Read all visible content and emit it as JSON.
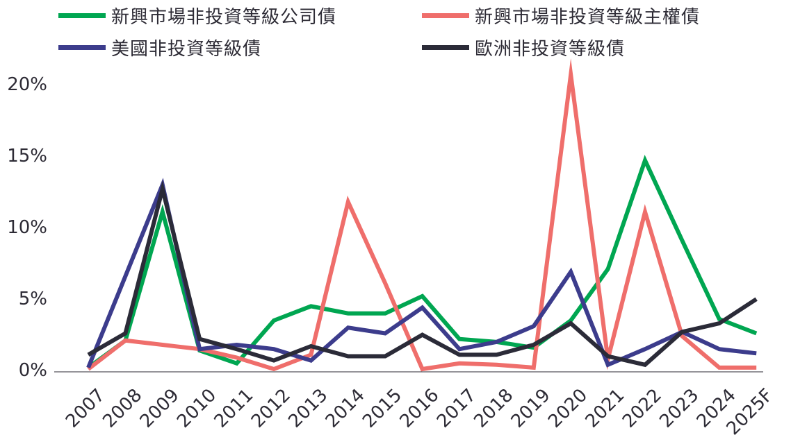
{
  "chart_data": {
    "type": "line",
    "categories": [
      "2007",
      "2008",
      "2009",
      "2010",
      "2011",
      "2012",
      "2013",
      "2014",
      "2015",
      "2016",
      "2017",
      "2018",
      "2019",
      "2020",
      "2021",
      "2022",
      "2023",
      "2024",
      "2025F"
    ],
    "series": [
      {
        "name": "新興市場非投資等級公司債",
        "color": "#00a651",
        "values": [
          0.1,
          2.0,
          11.0,
          1.3,
          0.4,
          3.4,
          4.4,
          3.9,
          3.9,
          5.1,
          2.1,
          1.9,
          1.5,
          3.4,
          7.0,
          14.6,
          9.0,
          3.5,
          2.5
        ]
      },
      {
        "name": "新興市場非投資等級主權債",
        "color": "#ef6e6b",
        "values": [
          0.0,
          2.0,
          1.7,
          1.4,
          0.8,
          0.0,
          1.0,
          11.7,
          6.0,
          0.0,
          0.4,
          0.3,
          0.1,
          20.6,
          0.7,
          11.0,
          2.3,
          0.1,
          0.1
        ]
      },
      {
        "name": "美國非投資等級債",
        "color": "#3c3c8c",
        "values": [
          0.1,
          6.5,
          12.9,
          1.4,
          1.7,
          1.4,
          0.6,
          2.9,
          2.5,
          4.3,
          1.4,
          1.9,
          3.0,
          6.8,
          0.3,
          1.4,
          2.6,
          1.4,
          1.1
        ]
      },
      {
        "name": "歐洲非投資等級債",
        "color": "#2b2b38",
        "values": [
          1.0,
          2.5,
          12.6,
          2.1,
          1.4,
          0.6,
          1.6,
          0.9,
          0.9,
          2.4,
          1.0,
          1.0,
          1.7,
          3.2,
          0.9,
          0.3,
          2.6,
          3.2,
          4.9
        ]
      }
    ],
    "y_ticks": [
      "0%",
      "5%",
      "10%",
      "15%",
      "20%"
    ],
    "ylim": [
      0,
      20.5
    ],
    "title": "",
    "xlabel": "",
    "ylabel": "",
    "grid": false,
    "legend_position": "top"
  }
}
